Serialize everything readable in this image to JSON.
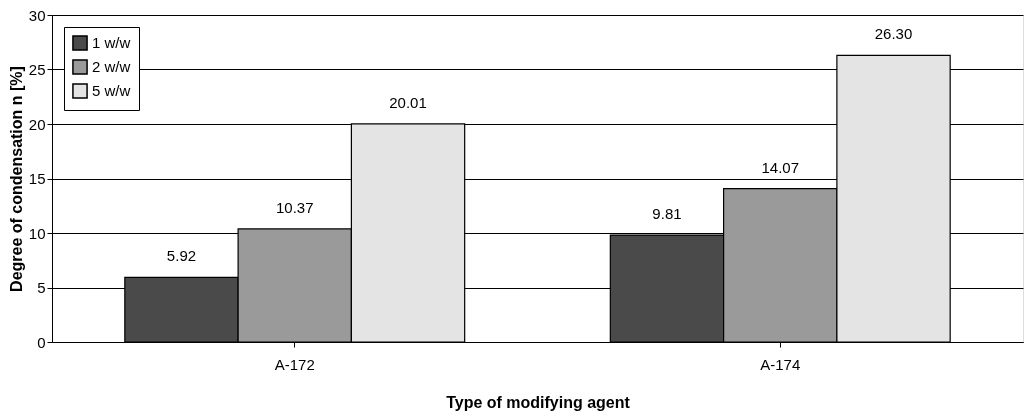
{
  "chart_data": {
    "type": "bar",
    "xlabel": "Type of modifying agent",
    "ylabel": "Degree of condensation  n [%]",
    "categories": [
      "A-172",
      "A-174"
    ],
    "series": [
      {
        "name": "1 w/w",
        "color": "#4a4a4a",
        "values": [
          5.92,
          9.81
        ],
        "value_labels": [
          "5.92",
          "9.81"
        ]
      },
      {
        "name": "2 w/w",
        "color": "#9a9a9a",
        "values": [
          10.37,
          14.07
        ],
        "value_labels": [
          "10.37",
          "14.07"
        ]
      },
      {
        "name": "5 w/w",
        "color": "#e4e4e4",
        "values": [
          20.01,
          26.3
        ],
        "value_labels": [
          "20.01",
          "26.30"
        ]
      }
    ],
    "ylim": [
      0,
      30
    ],
    "yticks": [
      0,
      5,
      10,
      15,
      20,
      25,
      30
    ],
    "grid": "y",
    "legend": "top left"
  }
}
